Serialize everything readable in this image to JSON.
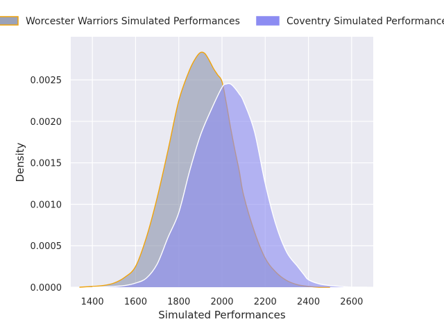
{
  "chart_data": {
    "type": "area",
    "xlabel": "Simulated Performances",
    "ylabel": "Density",
    "xlim": [
      1300,
      2700
    ],
    "ylim": [
      0,
      0.00302
    ],
    "xticks": [
      1400,
      1600,
      1800,
      2000,
      2200,
      2400,
      2600
    ],
    "xtick_labels": [
      "1400",
      "1600",
      "1800",
      "2000",
      "2200",
      "2400",
      "2600"
    ],
    "yticks": [
      0,
      0.0005,
      0.001,
      0.0015,
      0.002,
      0.0025
    ],
    "ytick_labels": [
      "0.0000",
      "0.0005",
      "0.0010",
      "0.0015",
      "0.0020",
      "0.0025"
    ],
    "grid": true,
    "legend_position": "top",
    "series": [
      {
        "name": "Worcester Warriors Simulated Performances",
        "fill": "#8a92ab",
        "line": "#f0a30a",
        "x": [
          1340,
          1400,
          1450,
          1500,
          1550,
          1600,
          1650,
          1700,
          1750,
          1800,
          1850,
          1880,
          1900,
          1920,
          1940,
          1960,
          1980,
          2000,
          2020,
          2040,
          2060,
          2080,
          2100,
          2150,
          2200,
          2250,
          2300,
          2350,
          2400,
          2450,
          2500
        ],
        "y": [
          0,
          1e-05,
          2e-05,
          5e-05,
          0.00012,
          0.00025,
          0.0006,
          0.00108,
          0.00165,
          0.00225,
          0.00262,
          0.00277,
          0.00283,
          0.00282,
          0.00274,
          0.00264,
          0.00256,
          0.00248,
          0.00222,
          0.00192,
          0.00165,
          0.0014,
          0.00111,
          0.00067,
          0.00035,
          0.00018,
          8e-05,
          3e-05,
          1e-05,
          0,
          0
        ]
      },
      {
        "name": "Coventry Simulated Performances",
        "fill": "#8c8cf2",
        "line": "#ffffff",
        "x": [
          1400,
          1500,
          1550,
          1600,
          1650,
          1700,
          1750,
          1800,
          1850,
          1900,
          1950,
          2000,
          2020,
          2040,
          2060,
          2080,
          2100,
          2150,
          2200,
          2250,
          2300,
          2350,
          2380,
          2400,
          2450,
          2500,
          2550,
          2600,
          2670
        ],
        "y": [
          0,
          1e-05,
          2e-05,
          5e-05,
          0.00011,
          0.00028,
          0.0006,
          0.0009,
          0.0014,
          0.00183,
          0.00214,
          0.00241,
          0.00245,
          0.00245,
          0.0024,
          0.00233,
          0.00224,
          0.00188,
          0.00125,
          0.00075,
          0.00042,
          0.00025,
          0.00015,
          9e-05,
          4e-05,
          2e-05,
          1e-05,
          0,
          0
        ]
      }
    ]
  }
}
